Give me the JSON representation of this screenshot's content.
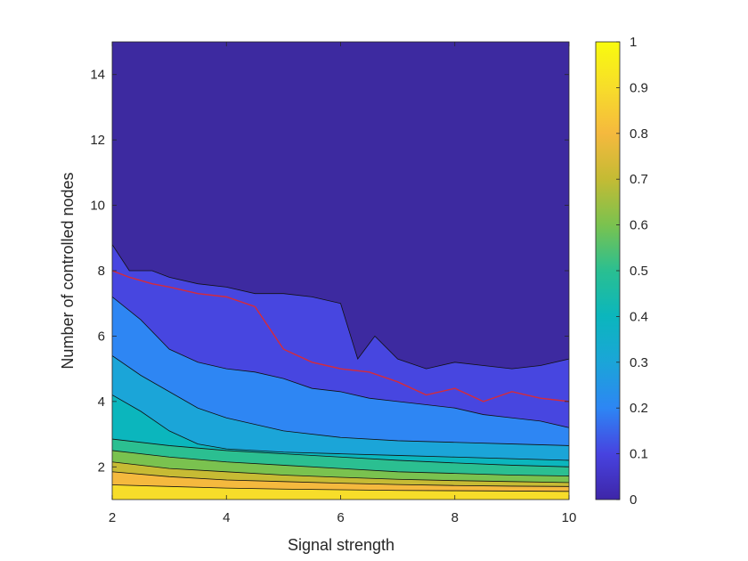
{
  "chart_data": {
    "type": "contour",
    "title": "",
    "xlabel": "Signal strength",
    "ylabel": "Number of controlled nodes",
    "xlim": [
      2,
      10
    ],
    "ylim": [
      1,
      15
    ],
    "xticks": [
      "2",
      "4",
      "6",
      "8",
      "10"
    ],
    "yticks": [
      "2",
      "4",
      "6",
      "8",
      "10",
      "12",
      "14"
    ],
    "colorbar": {
      "colormap": "parula",
      "range": [
        0,
        1
      ],
      "ticks": [
        "0",
        "0.1",
        "0.2",
        "0.3",
        "0.4",
        "0.5",
        "0.6",
        "0.7",
        "0.8",
        "0.9",
        "1"
      ]
    },
    "highlight_contour": {
      "color": "#d62b3a",
      "x": [
        2.0,
        2.3,
        2.7,
        3.0,
        3.5,
        4.0,
        4.5,
        5.0,
        5.5,
        6.0,
        6.5,
        7.0,
        7.5,
        8.0,
        8.5,
        9.0,
        9.5,
        10.0
      ],
      "y": [
        8.0,
        7.8,
        7.6,
        7.5,
        7.3,
        7.2,
        6.9,
        5.6,
        5.2,
        5.0,
        4.9,
        4.6,
        4.2,
        4.4,
        4.0,
        4.3,
        4.1,
        4.0
      ]
    },
    "filled_levels": [
      {
        "level": 0.05,
        "color": "#3d2aa0",
        "upper_boundary": {
          "x": [
            2,
            3,
            4,
            5,
            6,
            7,
            8,
            9,
            10
          ],
          "y": [
            15,
            15,
            15,
            15,
            15,
            15,
            15,
            15,
            15
          ]
        }
      },
      {
        "level": 0.15,
        "color": "#4746e0",
        "upper_boundary": {
          "x": [
            2,
            2.3,
            2.7,
            3,
            3.5,
            4,
            4.5,
            5,
            5.5,
            6,
            6.3,
            6.6,
            7,
            7.5,
            8,
            8.5,
            9,
            9.5,
            10
          ],
          "y": [
            8.8,
            8.0,
            8.0,
            7.8,
            7.6,
            7.5,
            7.3,
            7.3,
            7.2,
            7.0,
            5.3,
            6.0,
            5.3,
            5.0,
            5.2,
            5.1,
            5.0,
            5.1,
            5.3
          ]
        }
      },
      {
        "level": 0.25,
        "color": "#2e86f3",
        "upper_boundary": {
          "x": [
            2,
            2.5,
            3,
            3.5,
            4,
            4.5,
            5,
            5.5,
            6,
            6.5,
            7,
            7.5,
            8,
            8.5,
            9,
            9.5,
            10
          ],
          "y": [
            7.2,
            6.5,
            5.6,
            5.2,
            5.0,
            4.9,
            4.7,
            4.4,
            4.3,
            4.1,
            4.0,
            3.9,
            3.8,
            3.6,
            3.5,
            3.4,
            3.2
          ]
        }
      },
      {
        "level": 0.35,
        "color": "#1ba5d8",
        "upper_boundary": {
          "x": [
            2,
            2.5,
            3,
            3.5,
            4,
            5,
            6,
            7,
            8,
            9,
            10
          ],
          "y": [
            5.4,
            4.8,
            4.3,
            3.8,
            3.5,
            3.1,
            2.9,
            2.8,
            2.75,
            2.7,
            2.65
          ]
        }
      },
      {
        "level": 0.45,
        "color": "#0bb6bd",
        "upper_boundary": {
          "x": [
            2,
            2.5,
            3,
            3.5,
            4,
            5,
            6,
            7,
            8,
            9,
            10
          ],
          "y": [
            4.2,
            3.7,
            3.1,
            2.7,
            2.55,
            2.45,
            2.4,
            2.35,
            2.3,
            2.25,
            2.2
          ]
        }
      },
      {
        "level": 0.55,
        "color": "#2bbf91",
        "upper_boundary": {
          "x": [
            2,
            3,
            4,
            5,
            6,
            7,
            8,
            9,
            10
          ],
          "y": [
            2.85,
            2.65,
            2.5,
            2.4,
            2.3,
            2.2,
            2.12,
            2.05,
            2.0
          ]
        }
      },
      {
        "level": 0.65,
        "color": "#7ac24f",
        "upper_boundary": {
          "x": [
            2,
            3,
            4,
            5,
            6,
            7,
            8,
            9,
            10
          ],
          "y": [
            2.5,
            2.3,
            2.15,
            2.05,
            1.95,
            1.85,
            1.8,
            1.75,
            1.72
          ]
        }
      },
      {
        "level": 0.75,
        "color": "#c7bb34",
        "upper_boundary": {
          "x": [
            2,
            3,
            4,
            5,
            6,
            7,
            8,
            9,
            10
          ],
          "y": [
            2.15,
            1.95,
            1.85,
            1.75,
            1.68,
            1.62,
            1.58,
            1.55,
            1.52
          ]
        }
      },
      {
        "level": 0.85,
        "color": "#f5b93e",
        "upper_boundary": {
          "x": [
            2,
            3,
            4,
            5,
            6,
            7,
            8,
            9,
            10
          ],
          "y": [
            1.85,
            1.7,
            1.6,
            1.55,
            1.5,
            1.46,
            1.43,
            1.41,
            1.4
          ]
        }
      },
      {
        "level": 0.95,
        "color": "#f7dd2a",
        "upper_boundary": {
          "x": [
            2,
            3,
            4,
            5,
            6,
            7,
            8,
            9,
            10
          ],
          "y": [
            1.45,
            1.4,
            1.35,
            1.32,
            1.3,
            1.28,
            1.27,
            1.26,
            1.25
          ]
        }
      }
    ]
  }
}
